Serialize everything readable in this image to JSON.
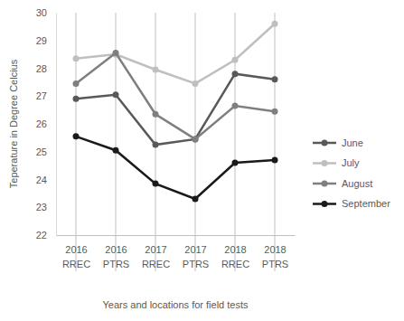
{
  "chart_data": {
    "type": "line",
    "x_label": "Years and locations for field tests",
    "y_label": "Teperature in Degree Celcius",
    "categories": [
      "2016\nRREC",
      "2016\nPTRS",
      "2017\nRREC",
      "2017\nPTRS",
      "2018\nRREC",
      "2018\nPTRS"
    ],
    "series": [
      {
        "name": "June",
        "color": "#595959",
        "values": [
          26.9,
          27.05,
          25.25,
          25.45,
          27.8,
          27.6
        ]
      },
      {
        "name": "July",
        "color": "#bfbfbf",
        "values": [
          28.35,
          28.5,
          27.95,
          27.45,
          28.3,
          29.6
        ]
      },
      {
        "name": "August",
        "color": "#7f7f7f",
        "values": [
          27.45,
          28.55,
          26.35,
          25.45,
          26.65,
          26.45
        ]
      },
      {
        "name": "September",
        "color": "#1a1a1a",
        "values": [
          25.55,
          25.05,
          23.85,
          23.3,
          24.6,
          24.7
        ]
      }
    ],
    "ylim": [
      22,
      30
    ],
    "yticks": [
      22,
      23,
      24,
      25,
      26,
      27,
      28,
      29,
      30
    ],
    "grid": true,
    "legend": "right",
    "marker": "circle"
  }
}
